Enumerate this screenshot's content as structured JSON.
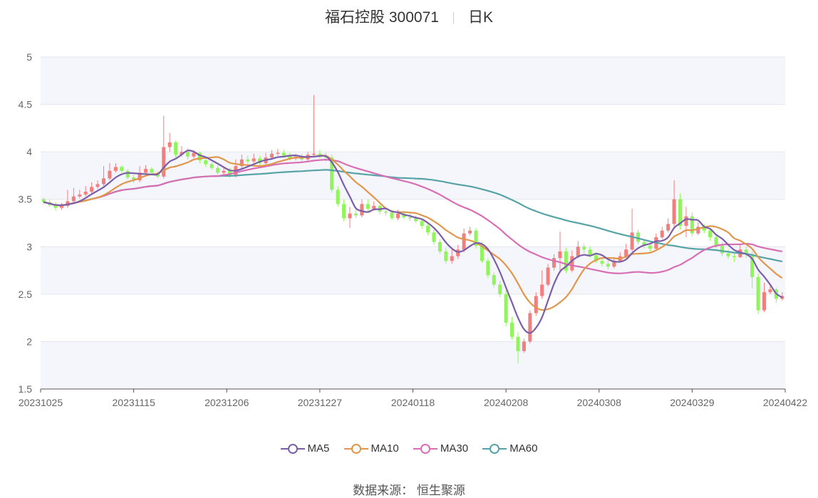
{
  "title": {
    "name": "福石控股 300071",
    "period": "日K"
  },
  "source": "数据来源： 恒生聚源",
  "colors": {
    "up": "#f27e7e",
    "down": "#8ff55a",
    "MA5": "#7b5ea8",
    "MA10": "#e0974c",
    "MA30": "#d86eb4",
    "MA60": "#55a3a6"
  },
  "chart_data": {
    "type": "candlestick",
    "ylim": [
      1.5,
      5
    ],
    "yticks": [
      "1.5",
      "2",
      "2.5",
      "3",
      "3.5",
      "4",
      "4.5",
      "5"
    ],
    "xticks": [
      "20231025",
      "20231115",
      "20231206",
      "20231227",
      "20240118",
      "20240208",
      "20240308",
      "20240329",
      "20240422"
    ],
    "legend": [
      "MA5",
      "MA10",
      "MA30",
      "MA60"
    ],
    "legend_position": "bottom",
    "close": [
      3.47,
      3.44,
      3.41,
      3.43,
      3.48,
      3.53,
      3.55,
      3.58,
      3.63,
      3.66,
      3.72,
      3.8,
      3.84,
      3.8,
      3.73,
      3.7,
      3.78,
      3.82,
      3.78,
      3.74,
      4.05,
      4.1,
      3.97,
      4.0,
      3.95,
      3.99,
      3.91,
      3.87,
      3.83,
      3.78,
      3.8,
      3.75,
      3.85,
      3.92,
      3.9,
      3.93,
      3.88,
      3.94,
      3.98,
      3.99,
      3.96,
      3.93,
      3.95,
      3.92,
      3.97,
      3.98,
      3.96,
      3.94,
      3.6,
      3.45,
      3.3,
      3.35,
      3.33,
      3.45,
      3.4,
      3.43,
      3.37,
      3.36,
      3.3,
      3.35,
      3.31,
      3.3,
      3.27,
      3.22,
      3.15,
      3.05,
      2.95,
      2.85,
      2.9,
      2.97,
      3.14,
      3.17,
      3.01,
      2.85,
      2.7,
      2.6,
      2.5,
      2.2,
      2.05,
      1.9,
      2.0,
      2.3,
      2.48,
      2.6,
      2.78,
      2.88,
      2.95,
      2.75,
      2.9,
      3.0,
      2.97,
      2.91,
      2.85,
      2.82,
      2.79,
      2.85,
      2.9,
      2.97,
      3.15,
      3.05,
      3.01,
      2.98,
      3.1,
      3.17,
      3.24,
      3.5,
      3.22,
      3.32,
      3.14,
      3.21,
      3.17,
      3.1,
      3.01,
      2.93,
      2.9,
      2.89,
      2.97,
      2.92,
      2.68,
      2.33,
      2.52,
      2.55,
      2.45,
      2.48
    ],
    "open": [
      3.5,
      3.47,
      3.44,
      3.41,
      3.43,
      3.48,
      3.53,
      3.55,
      3.58,
      3.63,
      3.66,
      3.72,
      3.8,
      3.84,
      3.8,
      3.73,
      3.7,
      3.78,
      3.82,
      3.78,
      3.74,
      4.05,
      4.1,
      3.97,
      4.0,
      3.95,
      3.99,
      3.91,
      3.87,
      3.83,
      3.78,
      3.8,
      3.75,
      3.85,
      3.92,
      3.9,
      3.93,
      3.88,
      3.94,
      3.98,
      3.99,
      3.96,
      3.93,
      3.95,
      3.92,
      3.97,
      3.98,
      3.96,
      3.94,
      3.6,
      3.45,
      3.3,
      3.35,
      3.33,
      3.45,
      3.4,
      3.43,
      3.37,
      3.36,
      3.3,
      3.35,
      3.31,
      3.3,
      3.27,
      3.22,
      3.15,
      3.05,
      2.95,
      2.85,
      2.9,
      2.97,
      3.14,
      3.17,
      3.01,
      2.85,
      2.7,
      2.6,
      2.5,
      2.2,
      2.05,
      1.9,
      2.0,
      2.3,
      2.48,
      2.6,
      2.78,
      2.88,
      2.95,
      2.75,
      2.9,
      3.0,
      2.97,
      2.91,
      2.85,
      2.82,
      2.79,
      2.85,
      2.9,
      2.97,
      3.15,
      3.05,
      3.01,
      2.98,
      3.1,
      3.17,
      3.24,
      3.5,
      3.22,
      3.32,
      3.14,
      3.21,
      3.17,
      3.1,
      3.01,
      2.93,
      2.9,
      2.89,
      2.97,
      2.92,
      2.68,
      2.33,
      2.52,
      2.55,
      2.45
    ],
    "high": [
      3.52,
      3.5,
      3.47,
      3.46,
      3.6,
      3.62,
      3.6,
      3.64,
      3.68,
      3.7,
      3.85,
      3.88,
      3.88,
      3.86,
      3.82,
      3.76,
      3.85,
      3.86,
      3.84,
      3.8,
      4.38,
      4.2,
      4.12,
      4.06,
      4.04,
      4.02,
      4.0,
      3.93,
      3.89,
      3.86,
      3.84,
      3.83,
      3.92,
      3.97,
      3.96,
      3.98,
      3.96,
      3.99,
      4.02,
      4.03,
      4.02,
      3.99,
      3.98,
      3.98,
      4.0,
      4.6,
      4.02,
      3.99,
      3.97,
      3.64,
      3.5,
      3.42,
      3.4,
      3.5,
      3.5,
      3.48,
      3.46,
      3.42,
      3.39,
      3.39,
      3.38,
      3.35,
      3.33,
      3.3,
      3.25,
      3.18,
      3.08,
      2.99,
      2.97,
      3.02,
      3.19,
      3.21,
      3.2,
      3.05,
      2.88,
      2.73,
      2.64,
      2.54,
      2.26,
      2.1,
      2.03,
      2.33,
      2.52,
      2.75,
      2.82,
      2.92,
      3.16,
      2.99,
      2.96,
      3.06,
      3.03,
      3.0,
      2.94,
      2.88,
      2.85,
      2.89,
      2.94,
      3.03,
      3.4,
      3.18,
      3.07,
      3.03,
      3.14,
      3.21,
      3.3,
      3.7,
      3.56,
      3.42,
      3.36,
      3.26,
      3.24,
      3.2,
      3.13,
      3.05,
      2.97,
      2.93,
      3.02,
      3.0,
      2.95,
      2.72,
      2.62,
      2.6,
      2.57,
      2.52
    ],
    "low": [
      3.45,
      3.42,
      3.38,
      3.39,
      3.41,
      3.46,
      3.51,
      3.53,
      3.56,
      3.61,
      3.64,
      3.7,
      3.78,
      3.78,
      3.71,
      3.67,
      3.68,
      3.75,
      3.75,
      3.72,
      3.72,
      4.0,
      3.94,
      3.95,
      3.92,
      3.93,
      3.88,
      3.84,
      3.81,
      3.76,
      3.76,
      3.73,
      3.73,
      3.83,
      3.87,
      3.88,
      3.86,
      3.86,
      3.92,
      3.96,
      3.94,
      3.91,
      3.91,
      3.9,
      3.9,
      3.95,
      3.93,
      3.9,
      3.57,
      3.42,
      3.27,
      3.2,
      3.3,
      3.31,
      3.37,
      3.38,
      3.34,
      3.33,
      3.28,
      3.28,
      3.29,
      3.27,
      3.25,
      3.19,
      3.12,
      3.02,
      2.92,
      2.82,
      2.82,
      2.87,
      2.94,
      3.12,
      2.98,
      2.83,
      2.67,
      2.57,
      2.47,
      2.16,
      2.02,
      1.77,
      1.88,
      1.98,
      2.27,
      2.45,
      2.58,
      2.75,
      2.72,
      2.72,
      2.73,
      2.88,
      2.93,
      2.88,
      2.83,
      2.79,
      2.76,
      2.77,
      2.83,
      2.88,
      2.95,
      3.02,
      2.98,
      2.95,
      2.96,
      3.08,
      3.15,
      3.2,
      3.18,
      3.1,
      3.11,
      3.12,
      3.14,
      3.06,
      2.98,
      2.9,
      2.87,
      2.84,
      2.88,
      2.88,
      2.56,
      2.29,
      2.31,
      2.5,
      2.41,
      2.43
    ]
  }
}
